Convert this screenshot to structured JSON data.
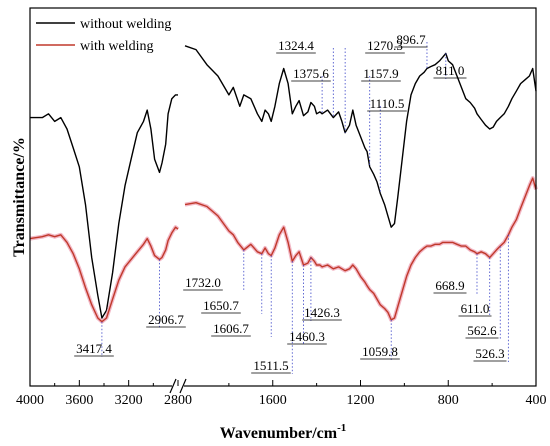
{
  "chart_data": {
    "type": "line",
    "title": "",
    "xlabel": "Wavenumber/cm",
    "xlabel_sup": "-1",
    "ylabel": "Transmittance/%",
    "x_axis_break": [
      2800,
      2000
    ],
    "xlim": [
      4000,
      400
    ],
    "x_reversed": true,
    "y_ticks_shown": false,
    "grid": false,
    "legend_position": "top-left",
    "x_ticks": [
      {
        "value": 4000,
        "label": "4000"
      },
      {
        "value": 3600,
        "label": "3600"
      },
      {
        "value": 3200,
        "label": "3200"
      },
      {
        "value": 2800,
        "label": "2800"
      },
      {
        "value": 1600,
        "label": "1600"
      },
      {
        "value": 1200,
        "label": "1200"
      },
      {
        "value": 800,
        "label": "800"
      },
      {
        "value": 400,
        "label": "400"
      }
    ],
    "series": [
      {
        "name": "without welding",
        "color": "#000000",
        "points": [
          [
            4000,
            71.0
          ],
          [
            3900,
            71.0
          ],
          [
            3850,
            72.0
          ],
          [
            3800,
            70.0
          ],
          [
            3750,
            71.0
          ],
          [
            3700,
            68.0
          ],
          [
            3650,
            63.0
          ],
          [
            3600,
            58.0
          ],
          [
            3550,
            48.0
          ],
          [
            3500,
            34.0
          ],
          [
            3450,
            24.0
          ],
          [
            3417,
            18.0
          ],
          [
            3380,
            20.0
          ],
          [
            3330,
            30.0
          ],
          [
            3280,
            43.0
          ],
          [
            3230,
            53.0
          ],
          [
            3180,
            60.0
          ],
          [
            3130,
            67.0
          ],
          [
            3080,
            70.0
          ],
          [
            3050,
            73.0
          ],
          [
            3020,
            68.0
          ],
          [
            2990,
            60.0
          ],
          [
            2950,
            56.5
          ],
          [
            2930,
            59.0
          ],
          [
            2900,
            64.0
          ],
          [
            2880,
            72.0
          ],
          [
            2850,
            76.0
          ],
          [
            2820,
            77.0
          ],
          [
            2800,
            77.0
          ],
          [
            2000,
            90.0
          ],
          [
            1950,
            89.0
          ],
          [
            1900,
            85.0
          ],
          [
            1850,
            82.0
          ],
          [
            1800,
            77.0
          ],
          [
            1780,
            79.0
          ],
          [
            1750,
            74.0
          ],
          [
            1732,
            77.0
          ],
          [
            1700,
            76.0
          ],
          [
            1670,
            72.0
          ],
          [
            1650,
            70.0
          ],
          [
            1635,
            73.0
          ],
          [
            1620,
            72.0
          ],
          [
            1607,
            70.0
          ],
          [
            1590,
            74.0
          ],
          [
            1570,
            80.0
          ],
          [
            1550,
            84.0
          ],
          [
            1530,
            80.0
          ],
          [
            1511,
            72.0
          ],
          [
            1495,
            74.0
          ],
          [
            1480,
            75.5
          ],
          [
            1460,
            71.5
          ],
          [
            1440,
            72.5
          ],
          [
            1426,
            75.0
          ],
          [
            1410,
            74.0
          ],
          [
            1400,
            72.0
          ],
          [
            1385,
            72.5
          ],
          [
            1375,
            72.0
          ],
          [
            1350,
            73.0
          ],
          [
            1324,
            71.0
          ],
          [
            1300,
            72.5
          ],
          [
            1285,
            70.0
          ],
          [
            1270,
            67.0
          ],
          [
            1250,
            69.0
          ],
          [
            1235,
            73.0
          ],
          [
            1220,
            69.0
          ],
          [
            1200,
            66.0
          ],
          [
            1180,
            63.0
          ],
          [
            1170,
            62.0
          ],
          [
            1158,
            58.0
          ],
          [
            1140,
            56.0
          ],
          [
            1125,
            54.0
          ],
          [
            1110,
            51.0
          ],
          [
            1090,
            48.0
          ],
          [
            1075,
            45.0
          ],
          [
            1060,
            42.0
          ],
          [
            1045,
            43.0
          ],
          [
            1030,
            50.0
          ],
          [
            1010,
            60.0
          ],
          [
            990,
            70.0
          ],
          [
            970,
            77.0
          ],
          [
            950,
            80.0
          ],
          [
            930,
            82.0
          ],
          [
            910,
            83.0
          ],
          [
            897,
            84.0
          ],
          [
            880,
            84.5
          ],
          [
            860,
            85.0
          ],
          [
            840,
            86.0
          ],
          [
            825,
            87.0
          ],
          [
            811,
            88.0
          ],
          [
            800,
            86.0
          ],
          [
            780,
            85.0
          ],
          [
            760,
            82.0
          ],
          [
            740,
            79.0
          ],
          [
            720,
            76.0
          ],
          [
            700,
            75.0
          ],
          [
            680,
            73.5
          ],
          [
            669,
            72.0
          ],
          [
            650,
            70.5
          ],
          [
            630,
            69.0
          ],
          [
            611,
            68.0
          ],
          [
            595,
            68.5
          ],
          [
            580,
            70.0
          ],
          [
            563,
            71.0
          ],
          [
            545,
            72.0
          ],
          [
            526,
            74.0
          ],
          [
            510,
            76.0
          ],
          [
            490,
            78.0
          ],
          [
            470,
            80.0
          ],
          [
            450,
            81.0
          ],
          [
            430,
            82.0
          ],
          [
            415,
            84.0
          ],
          [
            405,
            80.0
          ],
          [
            400,
            78.0
          ]
        ]
      },
      {
        "name": "with welding",
        "color": "#c0392b",
        "points": [
          [
            4000,
            39.0
          ],
          [
            3900,
            39.5
          ],
          [
            3850,
            40.0
          ],
          [
            3800,
            39.5
          ],
          [
            3750,
            40.0
          ],
          [
            3700,
            38.0
          ],
          [
            3650,
            35.0
          ],
          [
            3600,
            31.0
          ],
          [
            3550,
            26.0
          ],
          [
            3500,
            21.5
          ],
          [
            3450,
            18.0
          ],
          [
            3417,
            17.0
          ],
          [
            3380,
            18.0
          ],
          [
            3330,
            23.0
          ],
          [
            3280,
            28.0
          ],
          [
            3230,
            31.5
          ],
          [
            3180,
            33.5
          ],
          [
            3130,
            35.5
          ],
          [
            3080,
            37.5
          ],
          [
            3050,
            39.0
          ],
          [
            3020,
            37.0
          ],
          [
            2990,
            34.5
          ],
          [
            2950,
            33.5
          ],
          [
            2930,
            34.0
          ],
          [
            2900,
            36.0
          ],
          [
            2880,
            38.5
          ],
          [
            2850,
            40.5
          ],
          [
            2820,
            42.0
          ],
          [
            2800,
            41.5
          ],
          [
            2000,
            48.0
          ],
          [
            1950,
            48.5
          ],
          [
            1900,
            47.5
          ],
          [
            1850,
            45.0
          ],
          [
            1800,
            41.0
          ],
          [
            1780,
            40.0
          ],
          [
            1760,
            38.0
          ],
          [
            1732,
            36.0
          ],
          [
            1700,
            37.5
          ],
          [
            1670,
            35.5
          ],
          [
            1650,
            35.0
          ],
          [
            1635,
            36.5
          ],
          [
            1620,
            35.0
          ],
          [
            1607,
            34.5
          ],
          [
            1590,
            36.5
          ],
          [
            1570,
            40.0
          ],
          [
            1550,
            42.0
          ],
          [
            1530,
            38.0
          ],
          [
            1511,
            33.0
          ],
          [
            1495,
            34.5
          ],
          [
            1480,
            35.5
          ],
          [
            1460,
            32.0
          ],
          [
            1440,
            32.5
          ],
          [
            1426,
            34.0
          ],
          [
            1410,
            33.0
          ],
          [
            1400,
            32.0
          ],
          [
            1385,
            32.0
          ],
          [
            1375,
            31.5
          ],
          [
            1350,
            32.0
          ],
          [
            1324,
            31.0
          ],
          [
            1300,
            31.5
          ],
          [
            1285,
            31.0
          ],
          [
            1270,
            30.5
          ],
          [
            1250,
            31.0
          ],
          [
            1235,
            32.0
          ],
          [
            1220,
            31.0
          ],
          [
            1200,
            29.0
          ],
          [
            1180,
            27.5
          ],
          [
            1170,
            26.5
          ],
          [
            1158,
            25.5
          ],
          [
            1140,
            24.5
          ],
          [
            1125,
            23.0
          ],
          [
            1110,
            21.5
          ],
          [
            1090,
            20.5
          ],
          [
            1075,
            19.5
          ],
          [
            1060,
            17.5
          ],
          [
            1045,
            18.0
          ],
          [
            1030,
            21.0
          ],
          [
            1010,
            25.0
          ],
          [
            990,
            29.0
          ],
          [
            970,
            32.0
          ],
          [
            950,
            34.0
          ],
          [
            930,
            35.5
          ],
          [
            910,
            36.5
          ],
          [
            897,
            37.0
          ],
          [
            880,
            37.0
          ],
          [
            860,
            37.5
          ],
          [
            840,
            37.5
          ],
          [
            825,
            38.0
          ],
          [
            811,
            38.0
          ],
          [
            800,
            38.0
          ],
          [
            780,
            38.0
          ],
          [
            760,
            37.5
          ],
          [
            740,
            37.0
          ],
          [
            720,
            37.0
          ],
          [
            700,
            36.0
          ],
          [
            680,
            35.5
          ],
          [
            669,
            35.0
          ],
          [
            650,
            35.5
          ],
          [
            630,
            35.0
          ],
          [
            611,
            34.0
          ],
          [
            595,
            35.0
          ],
          [
            580,
            36.0
          ],
          [
            563,
            37.0
          ],
          [
            545,
            38.0
          ],
          [
            526,
            40.0
          ],
          [
            510,
            42.0
          ],
          [
            490,
            44.0
          ],
          [
            470,
            47.0
          ],
          [
            450,
            50.0
          ],
          [
            430,
            53.0
          ],
          [
            415,
            55.0
          ],
          [
            405,
            53.0
          ],
          [
            400,
            52.0
          ]
        ]
      }
    ],
    "annotations": [
      {
        "label": "3417.4",
        "x": 3417,
        "series": 1
      },
      {
        "label": "2906.7",
        "x": 2950,
        "series": 1
      },
      {
        "label": "1732.0",
        "x": 1732,
        "series": 1
      },
      {
        "label": "1650.7",
        "x": 1650,
        "series": 1
      },
      {
        "label": "1606.7",
        "x": 1607,
        "series": 1
      },
      {
        "label": "1511.5",
        "x": 1511,
        "series": 1
      },
      {
        "label": "1460.3",
        "x": 1460,
        "series": 1
      },
      {
        "label": "1426.3",
        "x": 1426,
        "series": 1
      },
      {
        "label": "1375.6",
        "x": 1375,
        "series": 0
      },
      {
        "label": "1324.4",
        "x": 1324,
        "series": 0
      },
      {
        "label": "1270.3",
        "x": 1270,
        "series": 0
      },
      {
        "label": "1157.9",
        "x": 1158,
        "series": 0
      },
      {
        "label": "1110.5",
        "x": 1110,
        "series": 0
      },
      {
        "label": "1059.8",
        "x": 1060,
        "series": 1
      },
      {
        "label": "896.7",
        "x": 897,
        "series": 0
      },
      {
        "label": "811.0",
        "x": 811,
        "series": 0
      },
      {
        "label": "668.9",
        "x": 669,
        "series": 1
      },
      {
        "label": "611.0",
        "x": 611,
        "series": 1
      },
      {
        "label": "562.6",
        "x": 563,
        "series": 1
      },
      {
        "label": "526.3",
        "x": 526,
        "series": 1
      }
    ]
  }
}
